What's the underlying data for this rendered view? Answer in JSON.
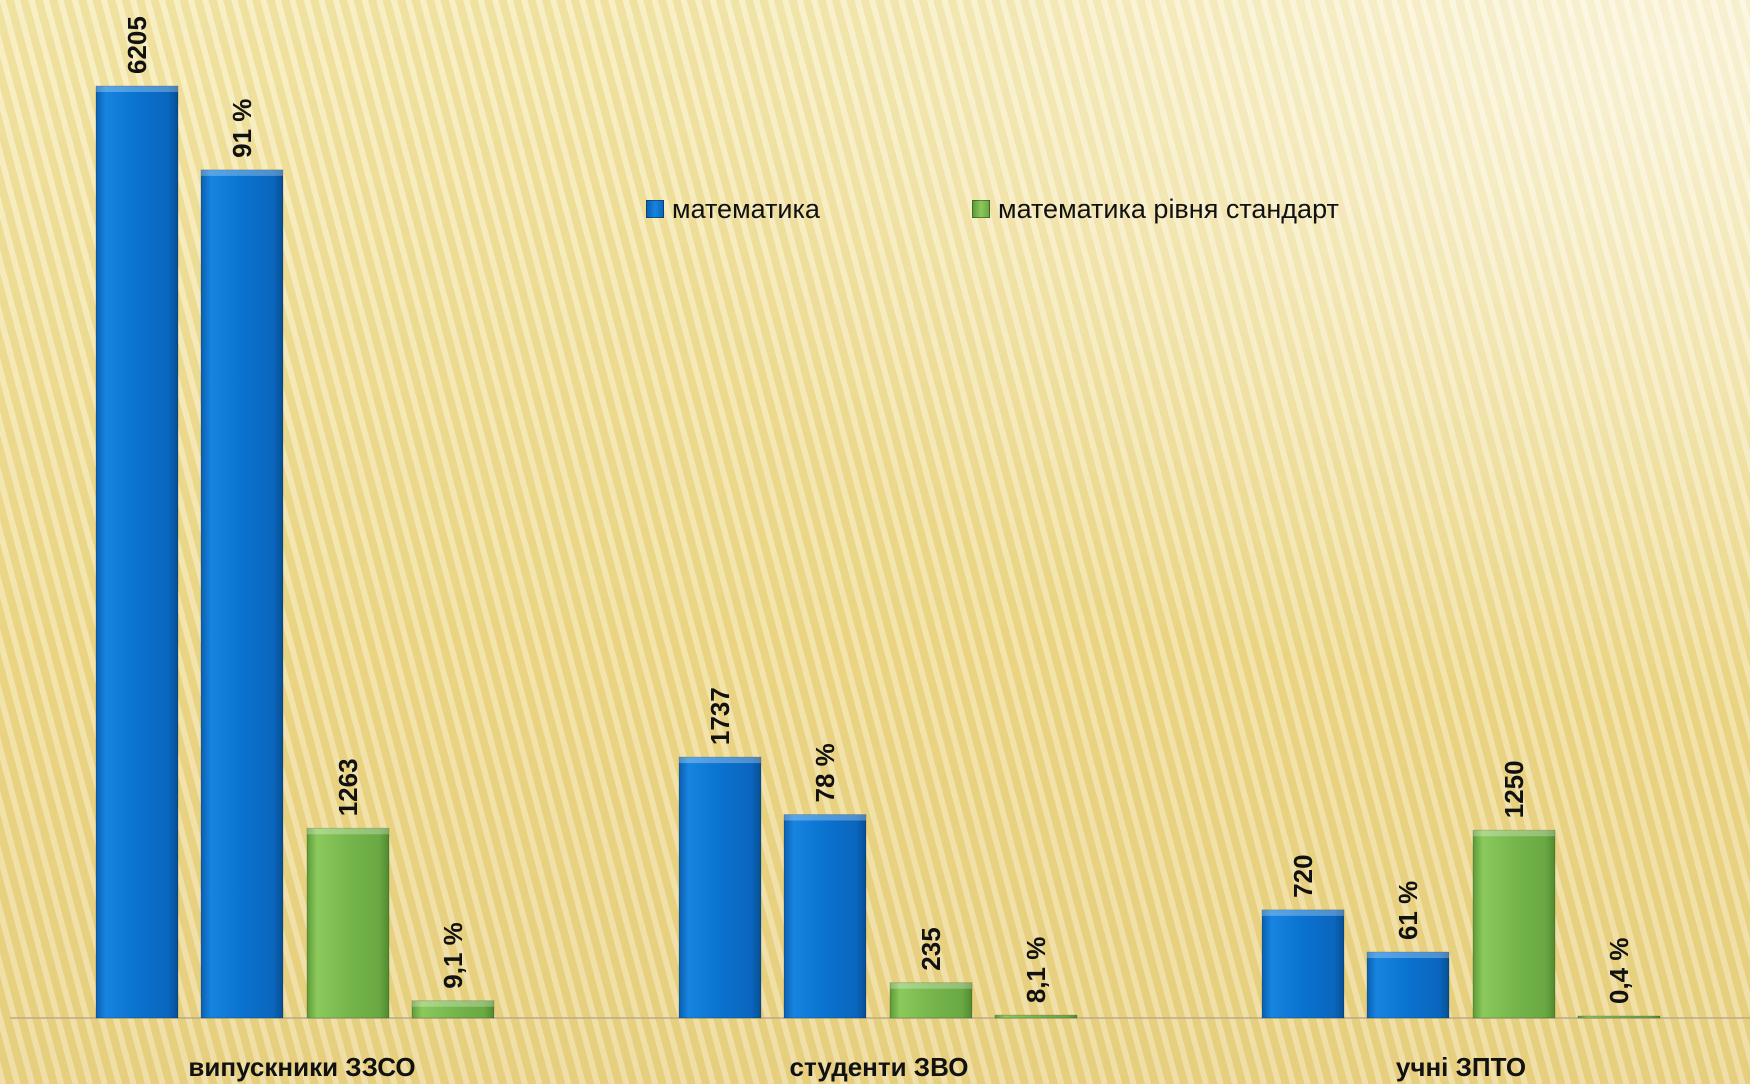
{
  "chart_data": {
    "type": "bar",
    "categories": [
      "випускники ЗЗСО",
      "студенти ЗВО",
      "учні ЗПТО"
    ],
    "bars": [
      {
        "category": "випускники ЗЗСО",
        "series": "математика",
        "value": 6205,
        "label": "6205"
      },
      {
        "category": "випускники ЗЗСО",
        "series": "математика",
        "value": 91,
        "label": "91 %"
      },
      {
        "category": "випускники ЗЗСО",
        "series": "математика рівня стандарт",
        "value": 1263,
        "label": "1263"
      },
      {
        "category": "випускники ЗЗСО",
        "series": "математика рівня стандарт",
        "value": 9.1,
        "label": "9,1 %"
      },
      {
        "category": "студенти ЗВО",
        "series": "математика",
        "value": 1737,
        "label": "1737"
      },
      {
        "category": "студенти ЗВО",
        "series": "математика",
        "value": 78,
        "label": "78 %"
      },
      {
        "category": "студенти ЗВО",
        "series": "математика рівня стандарт",
        "value": 235,
        "label": "235"
      },
      {
        "category": "студенти ЗВО",
        "series": "математика рівня стандарт",
        "value": 8.1,
        "label": "8,1 %"
      },
      {
        "category": "учні ЗПТО",
        "series": "математика",
        "value": 720,
        "label": "720"
      },
      {
        "category": "учні ЗПТО",
        "series": "математика",
        "value": 61,
        "label": "61 %"
      },
      {
        "category": "учні ЗПТО",
        "series": "математика рівня стандарт",
        "value": 1250,
        "label": "1250"
      },
      {
        "category": "учні ЗПТО",
        "series": "математика рівня стандарт",
        "value": 0.4,
        "label": "0,4 %"
      }
    ],
    "series": [
      {
        "name": "математика",
        "color": "#0a6fca"
      },
      {
        "name": "математика рівня стандарт",
        "color": "#72b04a"
      }
    ],
    "legend_position": "top-center",
    "grid": false
  }
}
